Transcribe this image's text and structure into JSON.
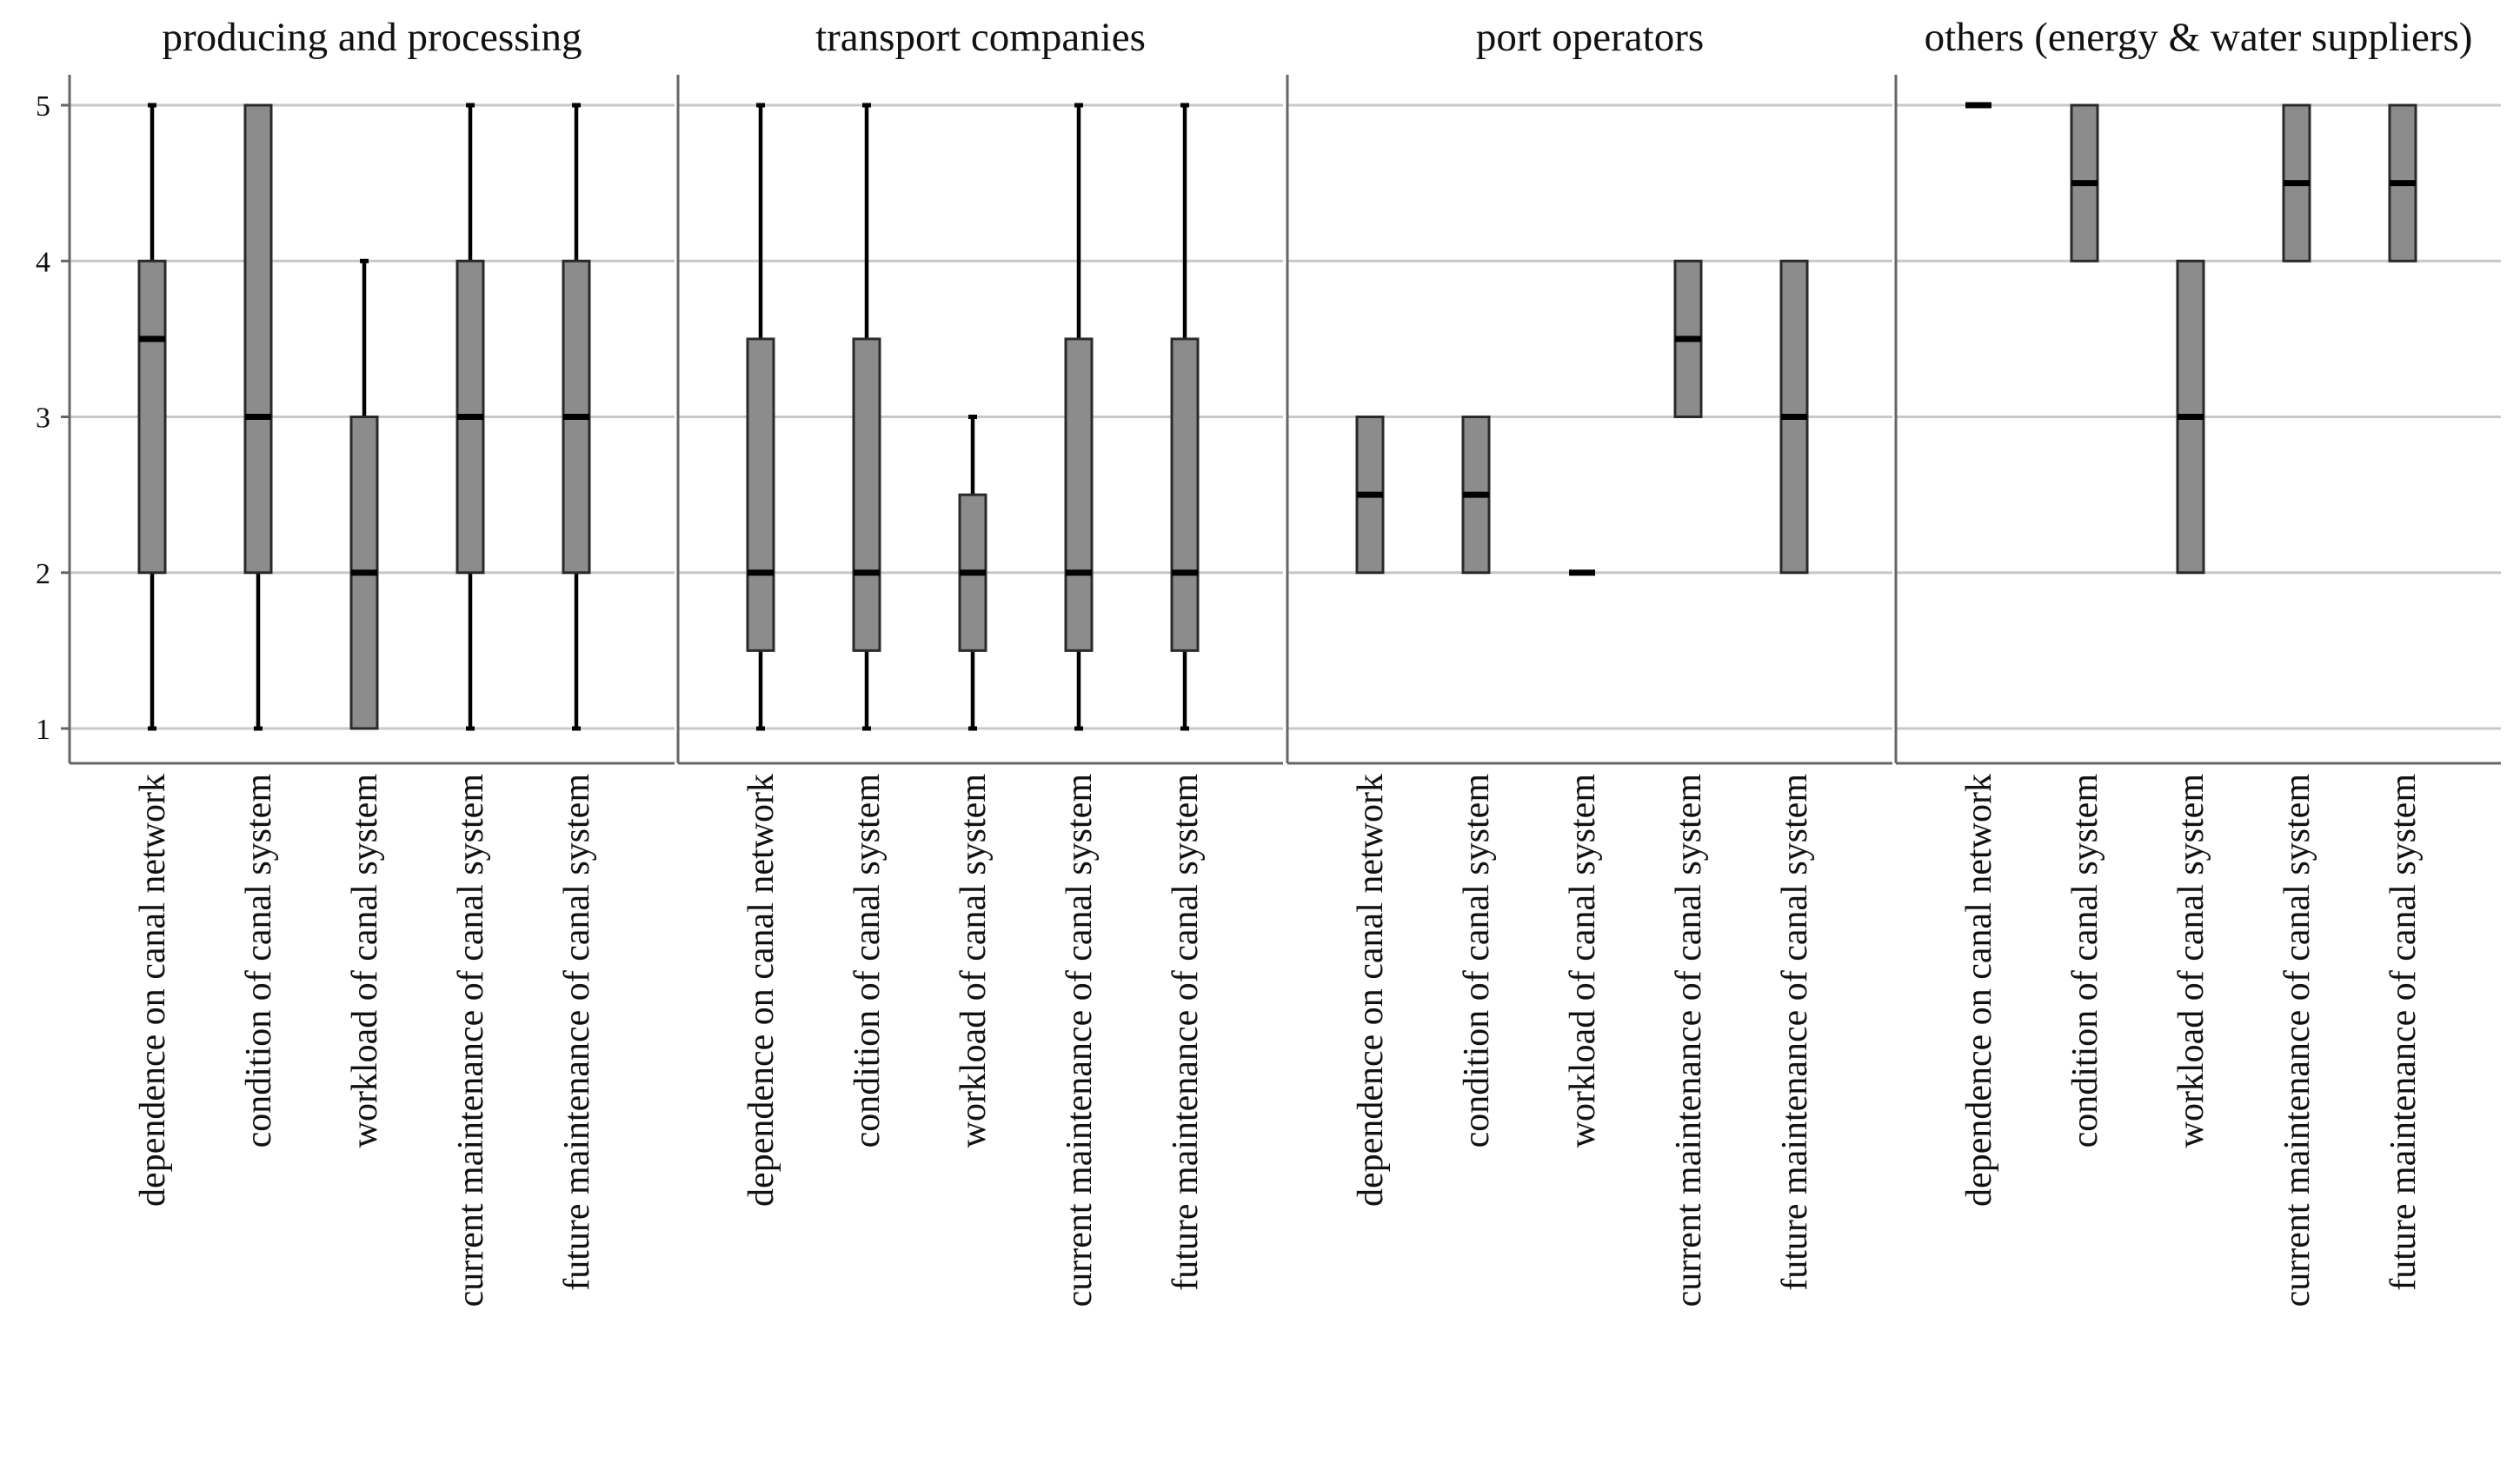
{
  "chart_data": {
    "type": "boxplot",
    "ylim": [
      1,
      5
    ],
    "yticks": [
      1,
      2,
      3,
      4,
      5
    ],
    "grid": true,
    "categories": [
      "dependence on canal network",
      "condition of canal system",
      "workload of canal system",
      "current maintenance of canal system",
      "future maintenance of canal system"
    ],
    "panels": [
      {
        "title": "producing and processing",
        "boxes": [
          {
            "min": 1,
            "q1": 2,
            "median": 3.5,
            "q3": 4,
            "max": 5
          },
          {
            "min": 1,
            "q1": 2,
            "median": 3,
            "q3": 5,
            "max": 5
          },
          {
            "min": 1,
            "q1": 1,
            "median": 2,
            "q3": 3,
            "max": 4
          },
          {
            "min": 1,
            "q1": 2,
            "median": 3,
            "q3": 4,
            "max": 5
          },
          {
            "min": 1,
            "q1": 2,
            "median": 3,
            "q3": 4,
            "max": 5
          }
        ]
      },
      {
        "title": "transport companies",
        "boxes": [
          {
            "min": 1,
            "q1": 1.5,
            "median": 2,
            "q3": 3.5,
            "max": 5
          },
          {
            "min": 1,
            "q1": 1.5,
            "median": 2,
            "q3": 3.5,
            "max": 5
          },
          {
            "min": 1,
            "q1": 1.5,
            "median": 2,
            "q3": 2.5,
            "max": 3
          },
          {
            "min": 1,
            "q1": 1.5,
            "median": 2,
            "q3": 3.5,
            "max": 5
          },
          {
            "min": 1,
            "q1": 1.5,
            "median": 2,
            "q3": 3.5,
            "max": 5
          }
        ]
      },
      {
        "title": "port operators",
        "boxes": [
          {
            "min": 2,
            "q1": 2,
            "median": 2.5,
            "q3": 3,
            "max": 3
          },
          {
            "min": 2,
            "q1": 2,
            "median": 2.5,
            "q3": 3,
            "max": 3
          },
          {
            "min": 2,
            "q1": 2,
            "median": 2,
            "q3": 2,
            "max": 2
          },
          {
            "min": 3,
            "q1": 3,
            "median": 3.5,
            "q3": 4,
            "max": 4
          },
          {
            "min": 2,
            "q1": 2,
            "median": 3,
            "q3": 4,
            "max": 4
          }
        ]
      },
      {
        "title": "others (energy & water suppliers)",
        "boxes": [
          {
            "min": 5,
            "q1": 5,
            "median": 5,
            "q3": 5,
            "max": 5
          },
          {
            "min": 4,
            "q1": 4,
            "median": 4.5,
            "q3": 5,
            "max": 5
          },
          {
            "min": 2,
            "q1": 2,
            "median": 3,
            "q3": 4,
            "max": 4
          },
          {
            "min": 4,
            "q1": 4,
            "median": 4.5,
            "q3": 5,
            "max": 5
          },
          {
            "min": 4,
            "q1": 4,
            "median": 4.5,
            "q3": 5,
            "max": 5
          }
        ]
      }
    ]
  }
}
